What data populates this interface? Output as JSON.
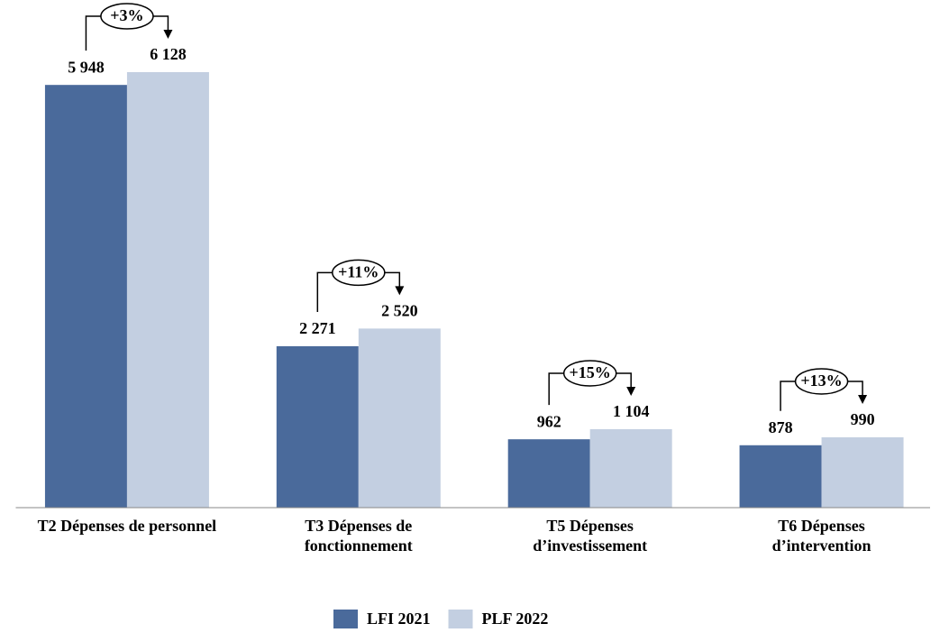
{
  "chart_data": {
    "type": "bar",
    "categories": [
      "T2 Dépenses de personnel",
      "T3 Dépenses de\nfonctionnement",
      "T5 Dépenses\nd’investissement",
      "T6 Dépenses\nd’intervention"
    ],
    "series": [
      {
        "name": "LFI 2021",
        "color": "#4a6a9b",
        "values": [
          5948,
          2271,
          962,
          878
        ],
        "value_labels": [
          "5 948",
          "2 271",
          "962",
          "878"
        ]
      },
      {
        "name": "PLF 2022",
        "color": "#c3cfe1",
        "values": [
          6128,
          2520,
          1104,
          990
        ],
        "value_labels": [
          "6 128",
          "2 520",
          "1 104",
          "990"
        ]
      }
    ],
    "annotations": [
      "+3%",
      "+11%",
      "+15%",
      "+13%"
    ]
  }
}
